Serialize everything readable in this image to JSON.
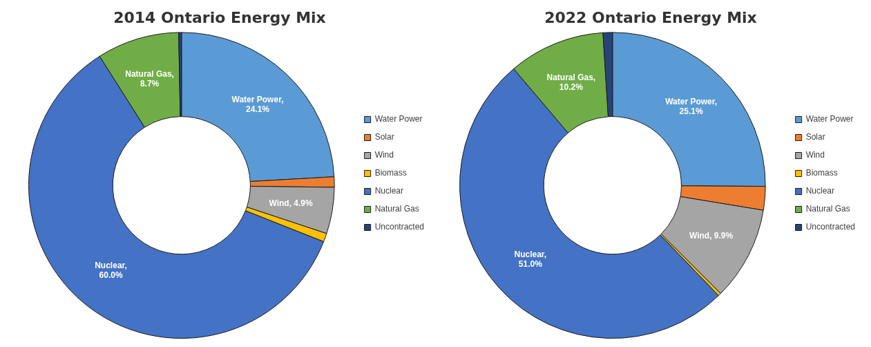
{
  "chart_data": [
    {
      "type": "donut",
      "title": "2014 Ontario Energy Mix",
      "categories": [
        "Water Power",
        "Solar",
        "Wind",
        "Biomass",
        "Nuclear",
        "Natural Gas",
        "Uncontracted"
      ],
      "values": [
        24.1,
        1.1,
        4.9,
        0.9,
        60.0,
        8.7,
        0.3
      ],
      "colors": [
        "#5b9bd5",
        "#ed7d31",
        "#a5a5a5",
        "#ffc000",
        "#4472c4",
        "#70ad47",
        "#264478"
      ],
      "value_labels": [
        "Water Power, 24.1%",
        null,
        "Wind, 4.9%",
        null,
        "Nuclear, 60.0%",
        "Natural Gas, 8.7%",
        null
      ],
      "legend": "right"
    },
    {
      "type": "donut",
      "title": "2022 Ontario Energy Mix",
      "categories": [
        "Water Power",
        "Solar",
        "Wind",
        "Biomass",
        "Nuclear",
        "Natural Gas",
        "Uncontracted"
      ],
      "values": [
        25.1,
        2.5,
        9.9,
        0.3,
        51.0,
        10.2,
        1.0
      ],
      "colors": [
        "#5b9bd5",
        "#ed7d31",
        "#a5a5a5",
        "#ffc000",
        "#4472c4",
        "#70ad47",
        "#264478"
      ],
      "value_labels": [
        "Water Power, 25.1%",
        null,
        "Wind, 9.9%",
        null,
        "Nuclear, 51.0%",
        "Natural Gas, 10.2%",
        null
      ],
      "legend": "right"
    }
  ]
}
